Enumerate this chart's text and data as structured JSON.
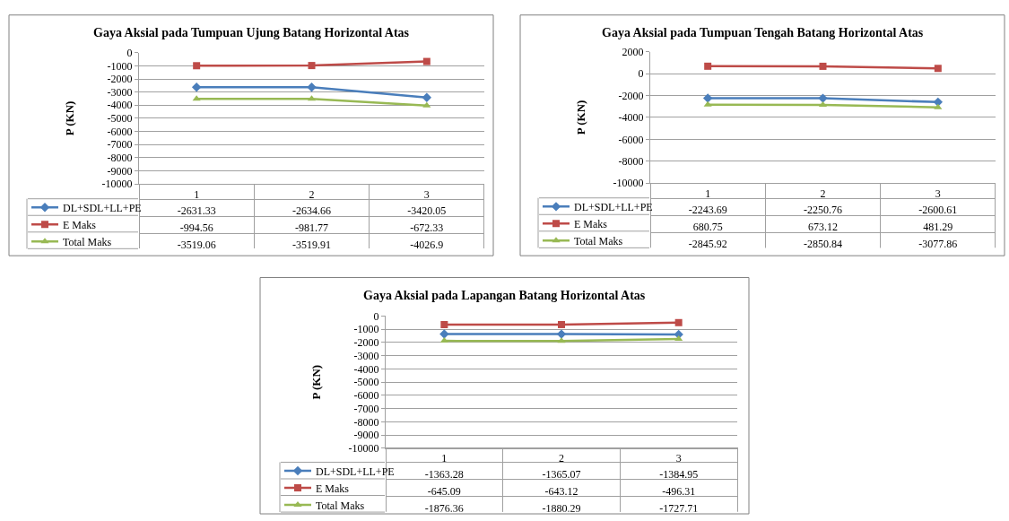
{
  "chart_data": [
    {
      "type": "line",
      "title": "Gaya Aksial pada Tumpuan Ujung Batang Horizontal Atas",
      "ylabel": "P (KN)",
      "categories": [
        "1",
        "2",
        "3"
      ],
      "series": [
        {
          "name": "DL+SDL+LL+PE",
          "color": "#4a7ebb",
          "marker": "diamond",
          "values": [
            -2631.33,
            -2634.66,
            -3420.05
          ]
        },
        {
          "name": "E Maks",
          "color": "#be4b48",
          "marker": "square",
          "values": [
            -994.56,
            -981.77,
            -672.33
          ]
        },
        {
          "name": "Total Maks",
          "color": "#98b954",
          "marker": "triangle",
          "values": [
            -3519.06,
            -3519.91,
            -4026.9
          ]
        }
      ],
      "ylim": [
        -10000,
        0
      ],
      "yticks": [
        0,
        -1000,
        -2000,
        -3000,
        -4000,
        -5000,
        -6000,
        -7000,
        -8000,
        -9000,
        -10000
      ],
      "grid": "y",
      "legend": "bottom left",
      "data_labels": true
    },
    {
      "type": "line",
      "title": "Gaya Aksial pada Tumpuan Tengah Batang Horizontal Atas",
      "ylabel": "P (KN)",
      "categories": [
        "1",
        "2",
        "3"
      ],
      "series": [
        {
          "name": "DL+SDL+LL+PE",
          "color": "#4a7ebb",
          "marker": "diamond",
          "values": [
            -2243.69,
            -2250.76,
            -2600.61
          ]
        },
        {
          "name": "E Maks",
          "color": "#be4b48",
          "marker": "square",
          "values": [
            680.75,
            673.12,
            481.29
          ]
        },
        {
          "name": "Total Maks",
          "color": "#98b954",
          "marker": "triangle",
          "values": [
            -2845.92,
            -2850.84,
            -3077.86
          ]
        }
      ],
      "ylim": [
        -10000,
        2000
      ],
      "yticks": [
        2000,
        0,
        -2000,
        -4000,
        -6000,
        -8000,
        -10000
      ],
      "grid": "y",
      "legend": "bottom left",
      "data_labels": true
    },
    {
      "type": "line",
      "title": "Gaya Aksial pada Lapangan Batang Horizontal Atas",
      "ylabel": "P (KN)",
      "categories": [
        "1",
        "2",
        "3"
      ],
      "series": [
        {
          "name": "DL+SDL+LL+PE",
          "color": "#4a7ebb",
          "marker": "diamond",
          "values": [
            -1363.28,
            -1365.07,
            -1384.95
          ]
        },
        {
          "name": "E Maks",
          "color": "#be4b48",
          "marker": "square",
          "values": [
            -645.09,
            -643.12,
            -496.31
          ]
        },
        {
          "name": "Total Maks",
          "color": "#98b954",
          "marker": "triangle",
          "values": [
            -1876.36,
            -1880.29,
            -1727.71
          ]
        }
      ],
      "ylim": [
        -10000,
        0
      ],
      "yticks": [
        0,
        -1000,
        -2000,
        -3000,
        -4000,
        -5000,
        -6000,
        -7000,
        -8000,
        -9000,
        -10000
      ],
      "grid": "y",
      "legend": "bottom left",
      "data_labels": true
    }
  ]
}
